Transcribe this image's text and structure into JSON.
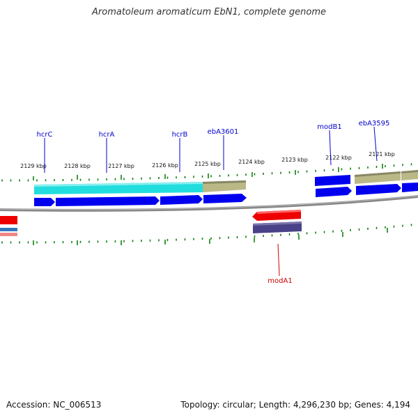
{
  "title": "Aromatoleum aromaticum EbN1, complete genome",
  "footer": {
    "accession": "Accession: NC_006513",
    "topology": "Topology: circular; Length: 4,296,230 bp; Genes: 4,194"
  },
  "colors": {
    "forward_gene": "#0000ee",
    "reverse_gene": "#ee0000",
    "cds_cyan": "#22dddd",
    "cds_khaki": "#bbb888",
    "rna_purple": "#4a4288",
    "tick": "#007700",
    "backbone": "#888888",
    "label_forward": "#0000cc",
    "label_reverse": "#cc0000"
  },
  "ticks": [
    {
      "label": "2129 kbp"
    },
    {
      "label": "2128 kbp"
    },
    {
      "label": "2127 kbp"
    },
    {
      "label": "2126 kbp"
    },
    {
      "label": "2125 kbp"
    },
    {
      "label": "2124 kbp"
    },
    {
      "label": "2123 kbp"
    },
    {
      "label": "2122 kbp"
    },
    {
      "label": "2121 kbp"
    }
  ],
  "gene_labels": [
    {
      "name": "hcrC",
      "strand": "forward"
    },
    {
      "name": "hcrA",
      "strand": "forward"
    },
    {
      "name": "hcrB",
      "strand": "forward"
    },
    {
      "name": "ebA3601",
      "strand": "forward"
    },
    {
      "name": "modB1",
      "strand": "forward"
    },
    {
      "name": "ebA3595",
      "strand": "forward"
    },
    {
      "name": "modA1",
      "strand": "reverse"
    }
  ]
}
